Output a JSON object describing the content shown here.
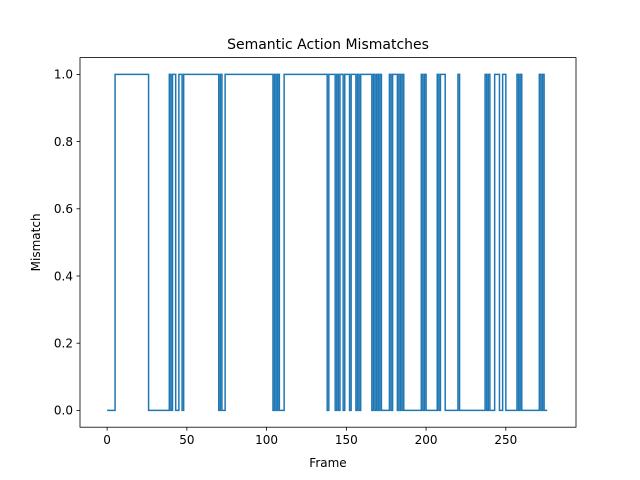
{
  "chart_data": {
    "type": "line",
    "title": "Semantic Action Mismatches",
    "xlabel": "Frame",
    "ylabel": "Mismatch",
    "xlim": [
      -17,
      294
    ],
    "ylim": [
      -0.05,
      1.05
    ],
    "xticks": [
      0,
      50,
      100,
      150,
      200,
      250
    ],
    "xtick_labels": [
      "0",
      "50",
      "100",
      "150",
      "200",
      "250"
    ],
    "yticks": [
      0.0,
      0.2,
      0.4,
      0.6,
      0.8,
      1.0
    ],
    "ytick_labels": [
      "0.0",
      "0.2",
      "0.4",
      "0.6",
      "0.8",
      "1.0"
    ],
    "grid": false,
    "series_color": "#1f77b4",
    "x_start": 0,
    "x_end": 276,
    "start_value": 0,
    "transitions": [
      [
        5,
        1
      ],
      [
        26,
        0
      ],
      [
        39,
        1
      ],
      [
        40,
        0
      ],
      [
        41,
        1
      ],
      [
        43,
        0
      ],
      [
        45,
        1
      ],
      [
        47,
        0
      ],
      [
        48,
        1
      ],
      [
        70,
        0
      ],
      [
        71,
        1
      ],
      [
        72,
        0
      ],
      [
        74,
        1
      ],
      [
        104,
        0
      ],
      [
        105,
        1
      ],
      [
        106,
        0
      ],
      [
        107,
        1
      ],
      [
        108,
        0
      ],
      [
        111,
        1
      ],
      [
        138,
        0
      ],
      [
        139,
        1
      ],
      [
        143,
        0
      ],
      [
        144,
        1
      ],
      [
        145,
        0
      ],
      [
        146,
        1
      ],
      [
        148,
        0
      ],
      [
        149,
        1
      ],
      [
        152,
        0
      ],
      [
        153,
        1
      ],
      [
        156,
        0
      ],
      [
        157,
        1
      ],
      [
        158,
        0
      ],
      [
        159,
        1
      ],
      [
        166,
        0
      ],
      [
        167,
        1
      ],
      [
        168,
        0
      ],
      [
        169,
        1
      ],
      [
        170,
        0
      ],
      [
        171,
        1
      ],
      [
        172,
        0
      ],
      [
        177,
        1
      ],
      [
        178,
        0
      ],
      [
        179,
        1
      ],
      [
        182,
        0
      ],
      [
        183,
        1
      ],
      [
        184,
        0
      ],
      [
        185,
        1
      ],
      [
        186,
        0
      ],
      [
        197,
        1
      ],
      [
        198,
        0
      ],
      [
        199,
        1
      ],
      [
        200,
        0
      ],
      [
        207,
        1
      ],
      [
        208,
        0
      ],
      [
        209,
        1
      ],
      [
        212,
        0
      ],
      [
        220,
        1
      ],
      [
        221,
        0
      ],
      [
        237,
        1
      ],
      [
        238,
        0
      ],
      [
        239,
        1
      ],
      [
        240,
        0
      ],
      [
        243,
        1
      ],
      [
        246,
        0
      ],
      [
        248,
        1
      ],
      [
        250,
        0
      ],
      [
        257,
        1
      ],
      [
        258,
        0
      ],
      [
        259,
        1
      ],
      [
        260,
        0
      ],
      [
        271,
        1
      ],
      [
        272,
        0
      ],
      [
        273,
        1
      ],
      [
        274,
        0
      ]
    ]
  }
}
